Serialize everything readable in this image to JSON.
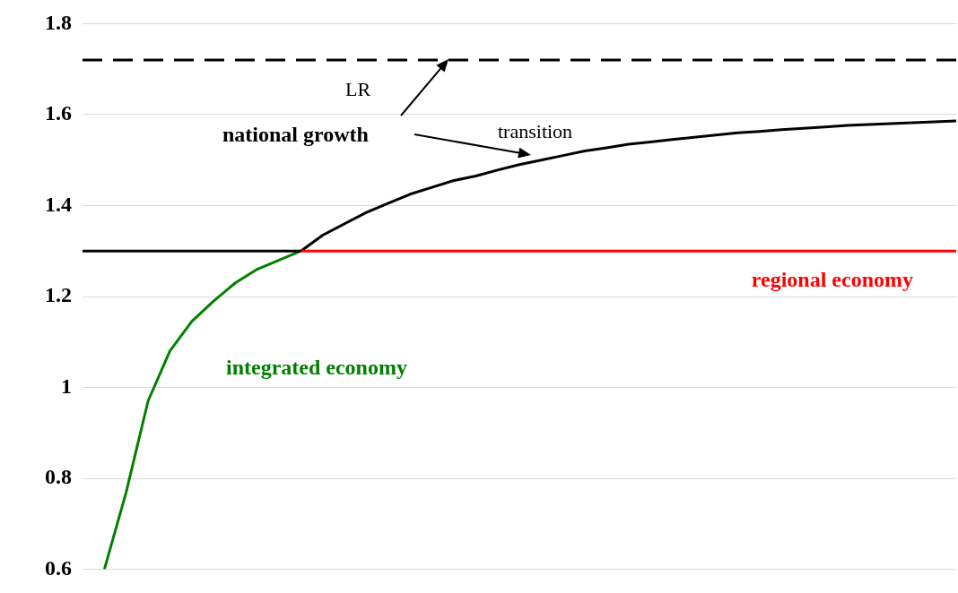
{
  "chart_data": {
    "type": "line",
    "categories": [
      null,
      null,
      null,
      null,
      null,
      null,
      null,
      null,
      null,
      null,
      null,
      null,
      null,
      null,
      null,
      null,
      null,
      null,
      null,
      null,
      null,
      null,
      null,
      null,
      null,
      null,
      null,
      null,
      null,
      null,
      null,
      null,
      null,
      null,
      null,
      null,
      null,
      null,
      null,
      null,
      null
    ],
    "series": [
      {
        "color": "#000000",
        "values": [
          1.3,
          1.3,
          1.3,
          1.3,
          1.3,
          1.3,
          1.3,
          1.3,
          1.3,
          1.3,
          1.3,
          null,
          null,
          null,
          null,
          null,
          null,
          null,
          null,
          null,
          null,
          null,
          null,
          null,
          null,
          null,
          null,
          null,
          null,
          null,
          null,
          null,
          null,
          null,
          null,
          null,
          null,
          null,
          null,
          null,
          null
        ]
      },
      {
        "name": "regional economy",
        "color": "#ff0000",
        "values": [
          null,
          null,
          null,
          null,
          null,
          null,
          null,
          null,
          null,
          null,
          1.3,
          1.3,
          1.3,
          1.3,
          1.3,
          1.3,
          1.3,
          1.3,
          1.3,
          1.3,
          1.3,
          1.3,
          1.3,
          1.3,
          1.3,
          1.3,
          1.3,
          1.3,
          1.3,
          1.3,
          1.3,
          1.3,
          1.3,
          1.3,
          1.3,
          1.3,
          1.3,
          1.3,
          1.3,
          1.3,
          1.3
        ]
      },
      {
        "name": "integrated economy",
        "color": "#008000",
        "values": [
          null,
          0.6,
          0.77,
          0.97,
          1.08,
          1.145,
          1.19,
          1.23,
          1.26,
          1.28,
          1.3,
          null,
          null,
          null,
          null,
          null,
          null,
          null,
          null,
          null,
          null,
          null,
          null,
          null,
          null,
          null,
          null,
          null,
          null,
          null,
          null,
          null,
          null,
          null,
          null,
          null,
          null,
          null,
          null,
          null,
          null
        ]
      },
      {
        "color": "#000000",
        "values": [
          null,
          null,
          null,
          null,
          null,
          null,
          null,
          null,
          null,
          null,
          1.3,
          1.335,
          1.36,
          1.385,
          1.405,
          1.425,
          1.44,
          1.455,
          1.465,
          1.478,
          1.49,
          1.5,
          1.51,
          1.52,
          1.527,
          1.535,
          1.54,
          1.545,
          1.55,
          1.555,
          1.56,
          1.563,
          1.567,
          1.57,
          1.573,
          1.576,
          1.578,
          1.58,
          1.582,
          1.584,
          1.586
        ]
      }
    ],
    "ylim": [
      0.6,
      1.8
    ],
    "yticks": [
      0.6,
      0.8,
      1,
      1.2,
      1.4,
      1.6,
      1.8
    ],
    "grid": "y",
    "tick_labels": "y",
    "legend": false,
    "ref_lines": [
      {
        "axis": "y",
        "value": 1.72,
        "label": "LR",
        "color": "#000000",
        "line_style": "dashed"
      }
    ],
    "annotations": [
      "national growth",
      "transition"
    ]
  }
}
